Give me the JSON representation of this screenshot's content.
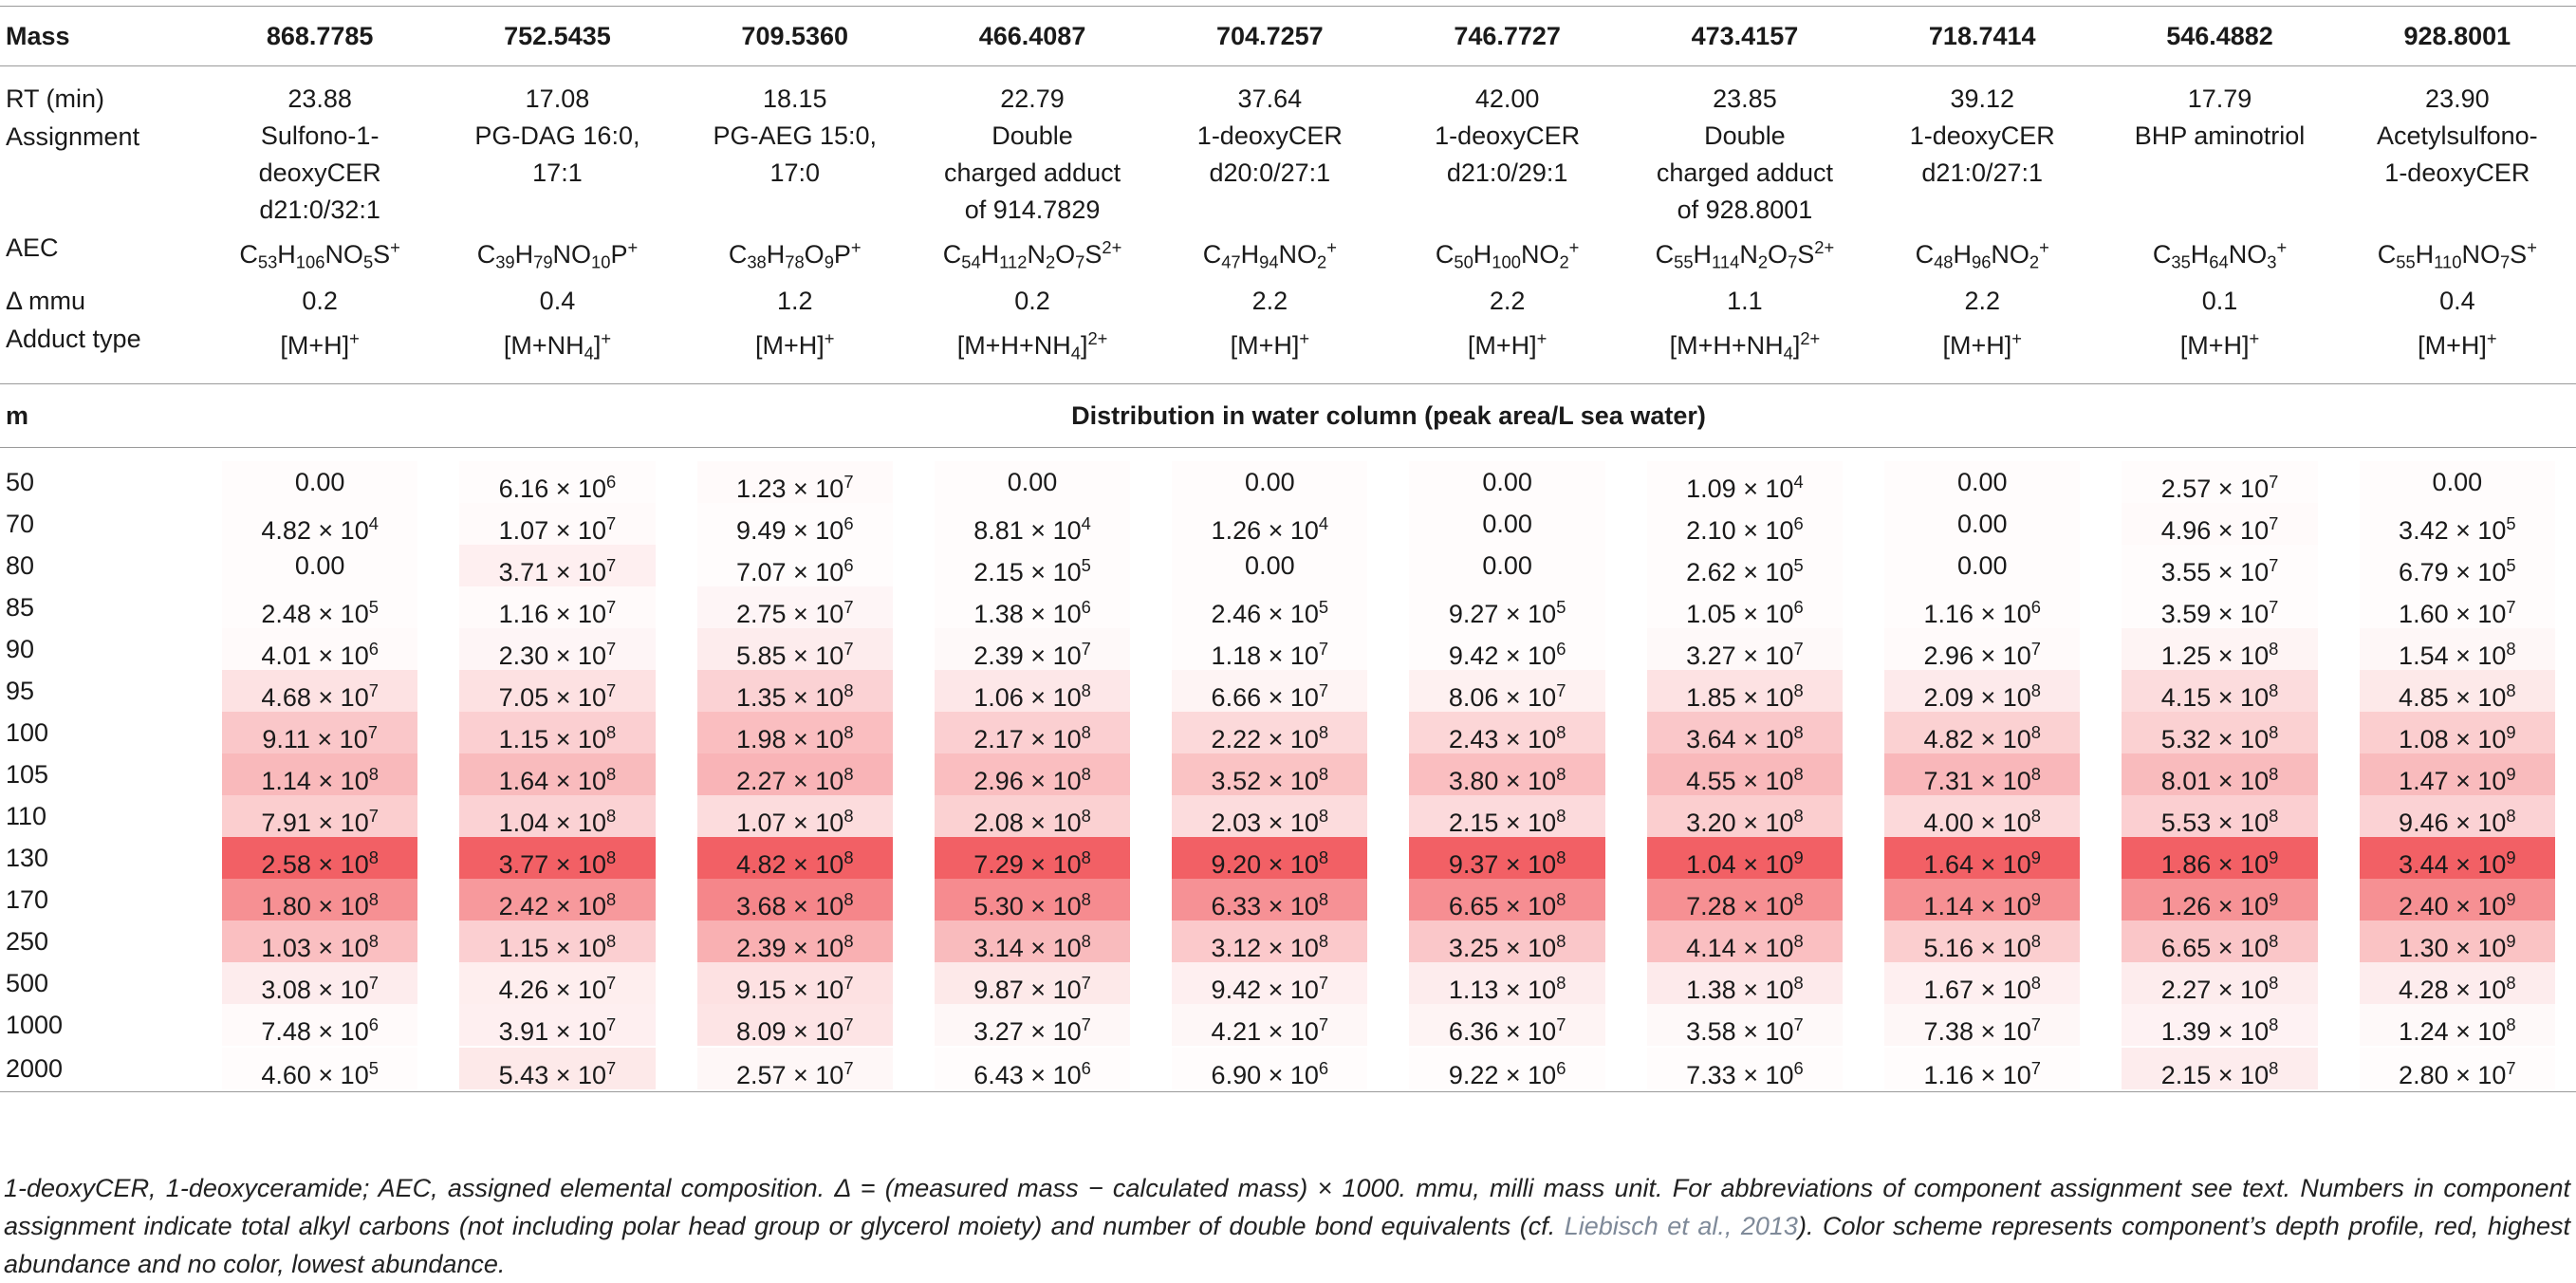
{
  "header": {
    "label": "Mass",
    "masses": [
      "868.7785",
      "752.5435",
      "709.5360",
      "466.4087",
      "704.7257",
      "746.7727",
      "473.4157",
      "718.7414",
      "546.4882",
      "928.8001"
    ]
  },
  "meta": {
    "rt": {
      "label": "RT (min)",
      "values": [
        "23.88",
        "17.08",
        "18.15",
        "22.79",
        "37.64",
        "42.00",
        "23.85",
        "39.12",
        "17.79",
        "23.90"
      ]
    },
    "assignment": {
      "label": "Assignment",
      "values": [
        [
          "Sulfono-1-",
          "deoxyCER",
          "d21:0/32:1"
        ],
        [
          "PG-DAG 16:0,",
          "17:1"
        ],
        [
          "PG-AEG 15:0,",
          "17:0"
        ],
        [
          "Double",
          "charged adduct",
          "of 914.7829"
        ],
        [
          "1-deoxyCER",
          "d20:0/27:1"
        ],
        [
          "1-deoxyCER",
          "d21:0/29:1"
        ],
        [
          "Double",
          "charged adduct",
          "of 928.8001"
        ],
        [
          "1-deoxyCER",
          "d21:0/27:1"
        ],
        [
          "BHP aminotriol"
        ],
        [
          "Acetylsulfono-",
          "1-deoxyCER"
        ]
      ]
    },
    "aec": {
      "label": "AEC",
      "values": [
        "C<sub>53</sub>H<sub>106</sub>NO<sub>5</sub>S<sup>+</sup>",
        "C<sub>39</sub>H<sub>79</sub>NO<sub>10</sub>P<sup>+</sup>",
        "C<sub>38</sub>H<sub>78</sub>O<sub>9</sub>P<sup>+</sup>",
        "C<sub>54</sub>H<sub>112</sub>N<sub>2</sub>O<sub>7</sub>S<sup>2+</sup>",
        "C<sub>47</sub>H<sub>94</sub>NO<sub>2</sub><sup>+</sup>",
        "C<sub>50</sub>H<sub>100</sub>NO<sub>2</sub><sup>+</sup>",
        "C<sub>55</sub>H<sub>114</sub>N<sub>2</sub>O<sub>7</sub>S<sup>2+</sup>",
        "C<sub>48</sub>H<sub>96</sub>NO<sub>2</sub><sup>+</sup>",
        "C<sub>35</sub>H<sub>64</sub>NO<sub>3</sub><sup>+</sup>",
        "C<sub>55</sub>H<sub>110</sub>NO<sub>7</sub>S<sup>+</sup>"
      ]
    },
    "mmu": {
      "label": "Δ mmu",
      "values": [
        "0.2",
        "0.4",
        "1.2",
        "0.2",
        "2.2",
        "2.2",
        "1.1",
        "2.2",
        "0.1",
        "0.4"
      ]
    },
    "adduct": {
      "label": "Adduct type",
      "values": [
        "[M+H]<sup>+</sup>",
        "[M+NH<sub>4</sub>]<sup>+</sup>",
        "[M+H]<sup>+</sup>",
        "[M+H+NH<sub>4</sub>]<sup>2+</sup>",
        "[M+H]<sup>+</sup>",
        "[M+H]<sup>+</sup>",
        "[M+H+NH<sub>4</sub>]<sup>2+</sup>",
        "[M+H]<sup>+</sup>",
        "[M+H]<sup>+</sup>",
        "[M+H]<sup>+</sup>"
      ]
    }
  },
  "section": {
    "depth_label": "m",
    "title": "Distribution in water column (peak area/L sea water)"
  },
  "colors": {
    "heat_max": "#f26065",
    "heat_min": "#ffffff",
    "rule": "#9a9a9a",
    "reference_link": "#7f8a99"
  },
  "distribution": [
    {
      "depth": "50",
      "cells": [
        [
          "0.00",
          0.02
        ],
        [
          "6.16 × 10<sup>6</sup>",
          0.02
        ],
        [
          "1.23 × 10<sup>7</sup>",
          0.03
        ],
        [
          "0.00",
          0.02
        ],
        [
          "0.00",
          0.02
        ],
        [
          "0.00",
          0.02
        ],
        [
          "1.09 × 10<sup>4</sup>",
          0.02
        ],
        [
          "0.00",
          0.02
        ],
        [
          "2.57 × 10<sup>7</sup>",
          0.02
        ],
        [
          "0.00",
          0.02
        ]
      ]
    },
    {
      "depth": "70",
      "cells": [
        [
          "4.82 × 10<sup>4</sup>",
          0.02
        ],
        [
          "1.07 × 10<sup>7</sup>",
          0.03
        ],
        [
          "9.49 × 10<sup>6</sup>",
          0.02
        ],
        [
          "8.81 × 10<sup>4</sup>",
          0.02
        ],
        [
          "1.26 × 10<sup>4</sup>",
          0.02
        ],
        [
          "0.00",
          0.02
        ],
        [
          "2.10 × 10<sup>6</sup>",
          0.02
        ],
        [
          "0.00",
          0.02
        ],
        [
          "4.96 × 10<sup>7</sup>",
          0.03
        ],
        [
          "3.42 × 10<sup>5</sup>",
          0.02
        ]
      ]
    },
    {
      "depth": "80",
      "cells": [
        [
          "0.00",
          0.02
        ],
        [
          "3.71 × 10<sup>7</sup>",
          0.1
        ],
        [
          "7.07 × 10<sup>6</sup>",
          0.02
        ],
        [
          "2.15 × 10<sup>5</sup>",
          0.02
        ],
        [
          "0.00",
          0.02
        ],
        [
          "0.00",
          0.02
        ],
        [
          "2.62 × 10<sup>5</sup>",
          0.02
        ],
        [
          "0.00",
          0.02
        ],
        [
          "3.55 × 10<sup>7</sup>",
          0.02
        ],
        [
          "6.79 × 10<sup>5</sup>",
          0.02
        ]
      ]
    },
    {
      "depth": "85",
      "cells": [
        [
          "2.48 × 10<sup>5</sup>",
          0.02
        ],
        [
          "1.16 × 10<sup>7</sup>",
          0.03
        ],
        [
          "2.75 × 10<sup>7</sup>",
          0.06
        ],
        [
          "1.38 × 10<sup>6</sup>",
          0.02
        ],
        [
          "2.46 × 10<sup>5</sup>",
          0.02
        ],
        [
          "9.27 × 10<sup>5</sup>",
          0.02
        ],
        [
          "1.05 × 10<sup>6</sup>",
          0.02
        ],
        [
          "1.16 × 10<sup>6</sup>",
          0.02
        ],
        [
          "3.59 × 10<sup>7</sup>",
          0.02
        ],
        [
          "1.60 × 10<sup>7</sup>",
          0.02
        ]
      ]
    },
    {
      "depth": "90",
      "cells": [
        [
          "4.01 × 10<sup>6</sup>",
          0.03
        ],
        [
          "2.30 × 10<sup>7</sup>",
          0.06
        ],
        [
          "5.85 × 10<sup>7</sup>",
          0.12
        ],
        [
          "2.39 × 10<sup>7</sup>",
          0.04
        ],
        [
          "1.18 × 10<sup>7</sup>",
          0.02
        ],
        [
          "9.42 × 10<sup>6</sup>",
          0.02
        ],
        [
          "3.27 × 10<sup>7</sup>",
          0.04
        ],
        [
          "2.96 × 10<sup>7</sup>",
          0.03
        ],
        [
          "1.25 × 10<sup>8</sup>",
          0.07
        ],
        [
          "1.54 × 10<sup>8</sup>",
          0.05
        ]
      ]
    },
    {
      "depth": "95",
      "cells": [
        [
          "4.68 × 10<sup>7</sup>",
          0.18
        ],
        [
          "7.05 × 10<sup>7</sup>",
          0.19
        ],
        [
          "1.35 × 10<sup>8</sup>",
          0.28
        ],
        [
          "1.06 × 10<sup>8</sup>",
          0.15
        ],
        [
          "6.66 × 10<sup>7</sup>",
          0.07
        ],
        [
          "8.06 × 10<sup>7</sup>",
          0.09
        ],
        [
          "1.85 × 10<sup>8</sup>",
          0.18
        ],
        [
          "2.09 × 10<sup>8</sup>",
          0.13
        ],
        [
          "4.15 × 10<sup>8</sup>",
          0.22
        ],
        [
          "4.85 × 10<sup>8</sup>",
          0.14
        ]
      ]
    },
    {
      "depth": "100",
      "cells": [
        [
          "9.11 × 10<sup>7</sup>",
          0.35
        ],
        [
          "1.15 × 10<sup>8</sup>",
          0.3
        ],
        [
          "1.98 × 10<sup>8</sup>",
          0.41
        ],
        [
          "2.17 × 10<sup>8</sup>",
          0.3
        ],
        [
          "2.22 × 10<sup>8</sup>",
          0.24
        ],
        [
          "2.43 × 10<sup>8</sup>",
          0.26
        ],
        [
          "3.64 × 10<sup>8</sup>",
          0.35
        ],
        [
          "4.82 × 10<sup>8</sup>",
          0.29
        ],
        [
          "5.32 × 10<sup>8</sup>",
          0.29
        ],
        [
          "1.08 × 10<sup>9</sup>",
          0.31
        ]
      ]
    },
    {
      "depth": "105",
      "cells": [
        [
          "1.14 × 10<sup>8</sup>",
          0.44
        ],
        [
          "1.64 × 10<sup>8</sup>",
          0.43
        ],
        [
          "2.27 × 10<sup>8</sup>",
          0.47
        ],
        [
          "2.96 × 10<sup>8</sup>",
          0.41
        ],
        [
          "3.52 × 10<sup>8</sup>",
          0.38
        ],
        [
          "3.80 × 10<sup>8</sup>",
          0.41
        ],
        [
          "4.55 × 10<sup>8</sup>",
          0.44
        ],
        [
          "7.31 × 10<sup>8</sup>",
          0.45
        ],
        [
          "8.01 × 10<sup>8</sup>",
          0.43
        ],
        [
          "1.47 × 10<sup>9</sup>",
          0.43
        ]
      ]
    },
    {
      "depth": "110",
      "cells": [
        [
          "7.91 × 10<sup>7</sup>",
          0.31
        ],
        [
          "1.04 × 10<sup>8</sup>",
          0.28
        ],
        [
          "1.07 × 10<sup>8</sup>",
          0.22
        ],
        [
          "2.08 × 10<sup>8</sup>",
          0.29
        ],
        [
          "2.03 × 10<sup>8</sup>",
          0.22
        ],
        [
          "2.15 × 10<sup>8</sup>",
          0.23
        ],
        [
          "3.20 × 10<sup>8</sup>",
          0.31
        ],
        [
          "4.00 × 10<sup>8</sup>",
          0.24
        ],
        [
          "5.53 × 10<sup>8</sup>",
          0.3
        ],
        [
          "9.46 × 10<sup>8</sup>",
          0.28
        ]
      ]
    },
    {
      "depth": "130",
      "cells": [
        [
          "2.58 × 10<sup>8</sup>",
          1.0
        ],
        [
          "3.77 × 10<sup>8</sup>",
          1.0
        ],
        [
          "4.82 × 10<sup>8</sup>",
          1.0
        ],
        [
          "7.29 × 10<sup>8</sup>",
          1.0
        ],
        [
          "9.20 × 10<sup>8</sup>",
          1.0
        ],
        [
          "9.37 × 10<sup>8</sup>",
          1.0
        ],
        [
          "1.04 × 10<sup>9</sup>",
          1.0
        ],
        [
          "1.64 × 10<sup>9</sup>",
          1.0
        ],
        [
          "1.86 × 10<sup>9</sup>",
          1.0
        ],
        [
          "3.44 × 10<sup>9</sup>",
          1.0
        ]
      ]
    },
    {
      "depth": "170",
      "cells": [
        [
          "1.80 × 10<sup>8</sup>",
          0.7
        ],
        [
          "2.42 × 10<sup>8</sup>",
          0.64
        ],
        [
          "3.68 × 10<sup>8</sup>",
          0.76
        ],
        [
          "5.30 × 10<sup>8</sup>",
          0.73
        ],
        [
          "6.33 × 10<sup>8</sup>",
          0.69
        ],
        [
          "6.65 × 10<sup>8</sup>",
          0.71
        ],
        [
          "7.28 × 10<sup>8</sup>",
          0.7
        ],
        [
          "1.14 × 10<sup>9</sup>",
          0.7
        ],
        [
          "1.26 × 10<sup>9</sup>",
          0.68
        ],
        [
          "2.40 × 10<sup>9</sup>",
          0.7
        ]
      ]
    },
    {
      "depth": "250",
      "cells": [
        [
          "1.03 × 10<sup>8</sup>",
          0.4
        ],
        [
          "1.15 × 10<sup>8</sup>",
          0.3
        ],
        [
          "2.39 × 10<sup>8</sup>",
          0.5
        ],
        [
          "3.14 × 10<sup>8</sup>",
          0.43
        ],
        [
          "3.12 × 10<sup>8</sup>",
          0.34
        ],
        [
          "3.25 × 10<sup>8</sup>",
          0.35
        ],
        [
          "4.14 × 10<sup>8</sup>",
          0.4
        ],
        [
          "5.16 × 10<sup>8</sup>",
          0.31
        ],
        [
          "6.65 × 10<sup>8</sup>",
          0.36
        ],
        [
          "1.30 × 10<sup>9</sup>",
          0.38
        ]
      ]
    },
    {
      "depth": "500",
      "cells": [
        [
          "3.08 × 10<sup>7</sup>",
          0.12
        ],
        [
          "4.26 × 10<sup>7</sup>",
          0.11
        ],
        [
          "9.15 × 10<sup>7</sup>",
          0.19
        ],
        [
          "9.87 × 10<sup>7</sup>",
          0.14
        ],
        [
          "9.42 × 10<sup>7</sup>",
          0.1
        ],
        [
          "1.13 × 10<sup>8</sup>",
          0.12
        ],
        [
          "1.38 × 10<sup>8</sup>",
          0.13
        ],
        [
          "1.67 × 10<sup>8</sup>",
          0.1
        ],
        [
          "2.27 × 10<sup>8</sup>",
          0.12
        ],
        [
          "4.28 × 10<sup>8</sup>",
          0.12
        ]
      ]
    },
    {
      "depth": "1000",
      "cells": [
        [
          "7.48 × 10<sup>6</sup>",
          0.03
        ],
        [
          "3.91 × 10<sup>7</sup>",
          0.1
        ],
        [
          "8.09 × 10<sup>7</sup>",
          0.17
        ],
        [
          "3.27 × 10<sup>7</sup>",
          0.05
        ],
        [
          "4.21 × 10<sup>7</sup>",
          0.05
        ],
        [
          "6.36 × 10<sup>7</sup>",
          0.07
        ],
        [
          "3.58 × 10<sup>7</sup>",
          0.04
        ],
        [
          "7.38 × 10<sup>7</sup>",
          0.05
        ],
        [
          "1.39 × 10<sup>8</sup>",
          0.08
        ],
        [
          "1.24 × 10<sup>8</sup>",
          0.04
        ]
      ]
    },
    {
      "depth": "2000",
      "cells": [
        [
          "4.60 × 10<sup>5</sup>",
          0.02
        ],
        [
          "5.43 × 10<sup>7</sup>",
          0.14
        ],
        [
          "2.57 × 10<sup>7</sup>",
          0.05
        ],
        [
          "6.43 × 10<sup>6</sup>",
          0.02
        ],
        [
          "6.90 × 10<sup>6</sup>",
          0.02
        ],
        [
          "9.22 × 10<sup>6</sup>",
          0.02
        ],
        [
          "7.33 × 10<sup>6</sup>",
          0.02
        ],
        [
          "1.16 × 10<sup>7</sup>",
          0.02
        ],
        [
          "2.15 × 10<sup>8</sup>",
          0.12
        ],
        [
          "2.80 × 10<sup>7</sup>",
          0.02
        ]
      ]
    }
  ],
  "caption": {
    "before_ref": "1-deoxyCER, 1-deoxyceramide; AEC, assigned elemental composition. Δ = (measured mass − calculated mass) × 1000. mmu, milli mass unit. For abbreviations of component assignment see text. Numbers in component assignment indicate total alkyl carbons (not including polar head group or glycerol moiety) and number of double bond equivalents (cf. ",
    "ref": "Liebisch et al., 2013",
    "after_ref": "). Color scheme represents component’s depth profile, red, highest abundance and no color, lowest abundance."
  }
}
